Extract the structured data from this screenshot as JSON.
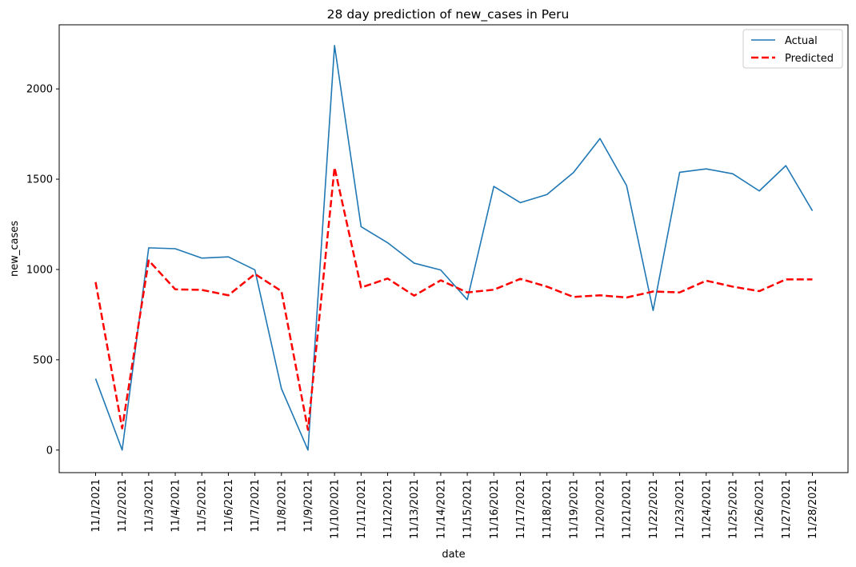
{
  "chart_data": {
    "type": "line",
    "title": "28 day prediction of new_cases in Peru",
    "xlabel": "date",
    "ylabel": "new_cases",
    "categories": [
      "11/1/2021",
      "11/2/2021",
      "11/3/2021",
      "11/4/2021",
      "11/5/2021",
      "11/6/2021",
      "11/7/2021",
      "11/8/2021",
      "11/9/2021",
      "11/10/2021",
      "11/11/2021",
      "11/12/2021",
      "11/13/2021",
      "11/14/2021",
      "11/15/2021",
      "11/16/2021",
      "11/17/2021",
      "11/18/2021",
      "11/19/2021",
      "11/20/2021",
      "11/21/2021",
      "11/22/2021",
      "11/23/2021",
      "11/24/2021",
      "11/25/2021",
      "11/26/2021",
      "11/27/2021",
      "11/28/2021"
    ],
    "ylim": [
      -125,
      2355
    ],
    "yticks": [
      0,
      500,
      1000,
      1500,
      2000
    ],
    "grid": false,
    "legend_position": "top-right",
    "series": [
      {
        "name": "Actual",
        "color": "#1f77b4",
        "style": "solid",
        "values": [
          395,
          0,
          1120,
          1115,
          1063,
          1070,
          998,
          340,
          0,
          2240,
          1237,
          1148,
          1035,
          997,
          833,
          1460,
          1370,
          1415,
          1537,
          1725,
          1465,
          773,
          1538,
          1557,
          1530,
          1435,
          1575,
          1325
        ]
      },
      {
        "name": "Predicted",
        "color": "#ff0000",
        "style": "dashed",
        "values": [
          930,
          120,
          1050,
          890,
          887,
          857,
          975,
          880,
          112,
          1565,
          900,
          950,
          855,
          940,
          873,
          888,
          948,
          905,
          848,
          857,
          845,
          878,
          873,
          938,
          905,
          880,
          945,
          945
        ]
      }
    ]
  }
}
